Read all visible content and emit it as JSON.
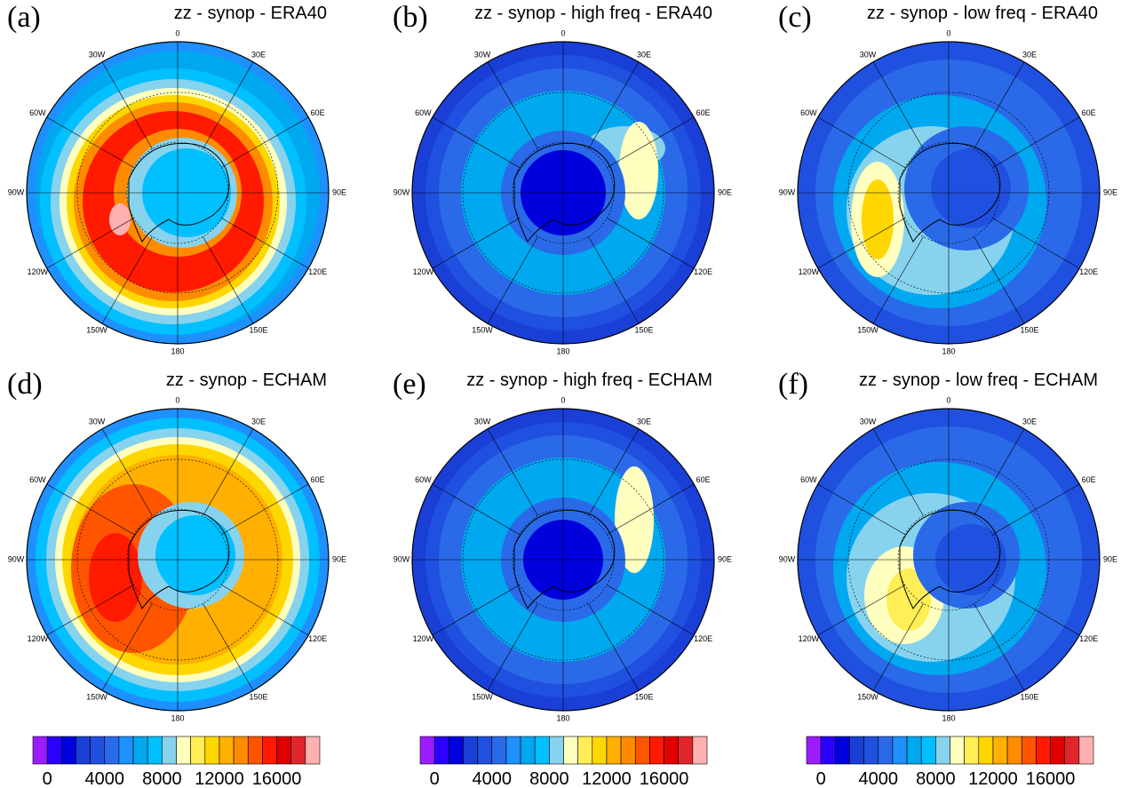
{
  "panels": [
    {
      "label": "(a)",
      "title": "zz - synop - ERA40"
    },
    {
      "label": "(b)",
      "title": "zz - synop - high freq - ERA40"
    },
    {
      "label": "(c)",
      "title": "zz - synop - low freq - ERA40"
    },
    {
      "label": "(d)",
      "title": "zz - synop - ECHAM"
    },
    {
      "label": "(e)",
      "title": "zz - synop - high freq - ECHAM"
    },
    {
      "label": "(f)",
      "title": "zz - synop - low freq - ECHAM"
    }
  ],
  "lon_labels": [
    "0",
    "30E",
    "60E",
    "90E",
    "120E",
    "150E",
    "180",
    "150W",
    "120W",
    "90W",
    "60W",
    "30W"
  ],
  "colorbar": {
    "xlim": [
      -1000,
      19000
    ],
    "ticks": [
      0,
      4000,
      8000,
      12000,
      16000
    ],
    "colors": [
      "#9b1dff",
      "#2a00ff",
      "#0000dd",
      "#1a3fd6",
      "#2050e0",
      "#2a6ae8",
      "#1e90ff",
      "#00a8f0",
      "#00c0ff",
      "#87d3ee",
      "#ffffc0",
      "#ffee55",
      "#ffd700",
      "#ffb000",
      "#ff8c00",
      "#ff5500",
      "#ff1a00",
      "#e00000",
      "#e0262a",
      "#ffb0b0"
    ]
  }
}
